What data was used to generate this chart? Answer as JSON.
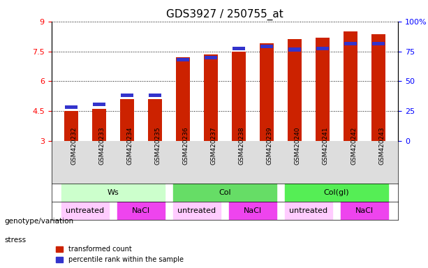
{
  "title": "GDS3927 / 250755_at",
  "samples": [
    "GSM420232",
    "GSM420233",
    "GSM420234",
    "GSM420235",
    "GSM420236",
    "GSM420237",
    "GSM420238",
    "GSM420239",
    "GSM420240",
    "GSM420241",
    "GSM420242",
    "GSM420243"
  ],
  "red_values": [
    4.5,
    4.6,
    5.1,
    5.1,
    7.2,
    7.35,
    7.5,
    7.9,
    8.1,
    8.2,
    8.5,
    8.35
  ],
  "blue_values": [
    4.6,
    4.75,
    5.2,
    5.2,
    7.0,
    7.1,
    7.55,
    7.65,
    7.5,
    7.55,
    7.8,
    7.8
  ],
  "blue_percentile": [
    20,
    22,
    30,
    30,
    62,
    65,
    76,
    68,
    75,
    76,
    80,
    80
  ],
  "ymin": 3,
  "ymax": 9,
  "yticks": [
    3,
    4.5,
    6,
    7.5,
    9
  ],
  "right_yticks": [
    0,
    25,
    50,
    75,
    100
  ],
  "right_yticklabels": [
    "0",
    "25",
    "50",
    "75",
    "100%"
  ],
  "bar_bottom": 3,
  "bar_color": "#cc2200",
  "blue_color": "#3333cc",
  "genotype_groups": [
    {
      "label": "Ws",
      "start": 0,
      "end": 3,
      "color": "#ccffcc"
    },
    {
      "label": "Col",
      "start": 4,
      "end": 7,
      "color": "#44cc44"
    },
    {
      "label": "Col(gl)",
      "start": 8,
      "end": 11,
      "color": "#44dd44"
    }
  ],
  "stress_groups": [
    {
      "label": "untreated",
      "start": 0,
      "end": 1,
      "color": "#ffccff"
    },
    {
      "label": "NaCl",
      "start": 2,
      "end": 3,
      "color": "#ff44ff"
    },
    {
      "label": "untreated",
      "start": 4,
      "end": 5,
      "color": "#ffccff"
    },
    {
      "label": "NaCl",
      "start": 6,
      "end": 7,
      "color": "#ff44ff"
    },
    {
      "label": "untreated",
      "start": 8,
      "end": 9,
      "color": "#ffccff"
    },
    {
      "label": "NaCl",
      "start": 10,
      "end": 11,
      "color": "#ff44ff"
    }
  ],
  "genotype_label": "genotype/variation",
  "stress_label": "stress",
  "legend_red": "transformed count",
  "legend_blue": "percentile rank within the sample",
  "bar_width": 0.5,
  "title_fontsize": 11,
  "tick_fontsize": 8,
  "label_fontsize": 8
}
